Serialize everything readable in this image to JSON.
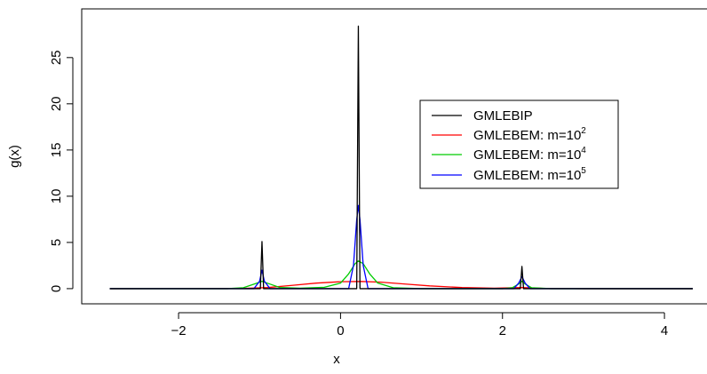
{
  "chart_data": {
    "type": "line",
    "xlabel": "x",
    "ylabel": "g(x)",
    "xlim": [
      -2.9,
      4.35
    ],
    "ylim": [
      -0.2,
      29.5
    ],
    "xticks": [
      -2,
      0,
      2,
      4
    ],
    "xtick_labels": [
      "−2",
      "0",
      "2",
      "4"
    ],
    "yticks": [
      0,
      5,
      10,
      15,
      20,
      25
    ],
    "ytick_labels": [
      "0",
      "5",
      "10",
      "15",
      "20",
      "25"
    ],
    "grid": false,
    "legend_position": "right",
    "series": [
      {
        "name": "GMLEBIP",
        "superscript": "",
        "color": "#000000",
        "points": [
          [
            -2.85,
            0
          ],
          [
            -0.99,
            0
          ],
          [
            -0.97,
            5.1
          ],
          [
            -0.95,
            0
          ],
          [
            0.2,
            0
          ],
          [
            0.22,
            28.4
          ],
          [
            0.24,
            0
          ],
          [
            2.22,
            0
          ],
          [
            2.24,
            2.4
          ],
          [
            2.26,
            0
          ],
          [
            4.35,
            0
          ]
        ]
      },
      {
        "name": "GMLEBEM: m=10",
        "superscript": "2",
        "color": "#ff0000",
        "points": [
          [
            -2.85,
            0
          ],
          [
            -1.2,
            0.02
          ],
          [
            -0.9,
            0.12
          ],
          [
            -0.6,
            0.35
          ],
          [
            -0.3,
            0.6
          ],
          [
            0.0,
            0.75
          ],
          [
            0.25,
            0.78
          ],
          [
            0.5,
            0.7
          ],
          [
            0.8,
            0.5
          ],
          [
            1.1,
            0.3
          ],
          [
            1.5,
            0.12
          ],
          [
            1.9,
            0.05
          ],
          [
            2.24,
            0.12
          ],
          [
            2.5,
            0.03
          ],
          [
            3.0,
            0
          ],
          [
            4.35,
            0
          ]
        ]
      },
      {
        "name": "GMLEBEM: m=10",
        "superscript": "4",
        "color": "#00cc00",
        "points": [
          [
            -2.85,
            0
          ],
          [
            -1.4,
            0
          ],
          [
            -1.2,
            0.1
          ],
          [
            -1.05,
            0.55
          ],
          [
            -0.97,
            0.8
          ],
          [
            -0.89,
            0.55
          ],
          [
            -0.75,
            0.12
          ],
          [
            -0.5,
            0.05
          ],
          [
            -0.2,
            0.15
          ],
          [
            0.0,
            0.6
          ],
          [
            0.1,
            1.6
          ],
          [
            0.18,
            2.7
          ],
          [
            0.22,
            3.0
          ],
          [
            0.28,
            2.7
          ],
          [
            0.36,
            1.6
          ],
          [
            0.46,
            0.6
          ],
          [
            0.65,
            0.1
          ],
          [
            1.0,
            0
          ],
          [
            2.0,
            0
          ],
          [
            2.12,
            0.1
          ],
          [
            2.2,
            0.5
          ],
          [
            2.24,
            0.8
          ],
          [
            2.28,
            0.5
          ],
          [
            2.36,
            0.1
          ],
          [
            2.6,
            0
          ],
          [
            4.35,
            0
          ]
        ]
      },
      {
        "name": "GMLEBEM: m=10",
        "superscript": "5",
        "color": "#0000ff",
        "points": [
          [
            -2.85,
            0
          ],
          [
            -1.07,
            0
          ],
          [
            -1.0,
            0.8
          ],
          [
            -0.97,
            2.0
          ],
          [
            -0.94,
            0.8
          ],
          [
            -0.87,
            0
          ],
          [
            0.1,
            0
          ],
          [
            0.16,
            2.5
          ],
          [
            0.2,
            7.5
          ],
          [
            0.22,
            9.0
          ],
          [
            0.24,
            7.5
          ],
          [
            0.28,
            2.5
          ],
          [
            0.34,
            0
          ],
          [
            2.14,
            0
          ],
          [
            2.2,
            0.6
          ],
          [
            2.24,
            1.3
          ],
          [
            2.28,
            0.6
          ],
          [
            2.34,
            0
          ],
          [
            4.35,
            0
          ]
        ]
      }
    ]
  }
}
